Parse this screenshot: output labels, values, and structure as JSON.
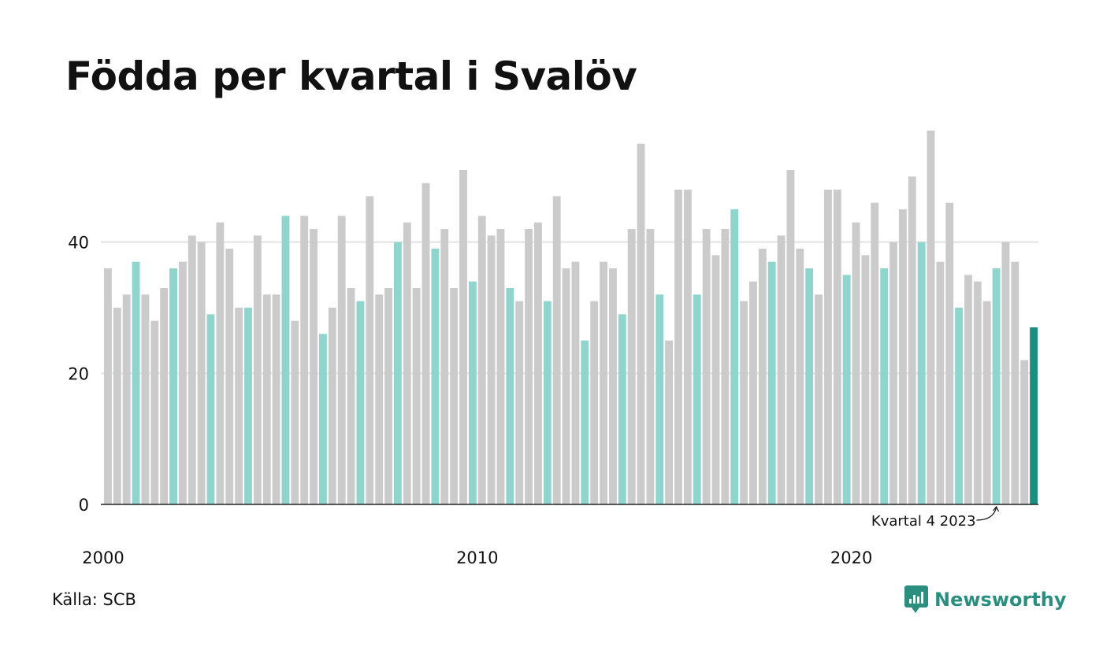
{
  "title": "Födda per kvartal i Svalöv",
  "source": "Källa: SCB",
  "brand": {
    "name": "Newsworthy",
    "icon": "newsworthy-logo-icon"
  },
  "colors": {
    "bar_default": "#cbcbcb",
    "bar_highlight": "#8fd5cd",
    "bar_latest": "#1a9080",
    "gridline": "#e2e2e2",
    "axis": "#222222",
    "brand": "#2b8f80"
  },
  "chart_data": {
    "type": "bar",
    "ylim": [
      0,
      60
    ],
    "yticks": [
      0,
      20,
      40
    ],
    "grid": true,
    "x_ticks": [
      "2000",
      "2010",
      "2020"
    ],
    "start_year": 2000,
    "highlight_quarter": 4,
    "annotation": "Kvartal 4 2023",
    "values": [
      36,
      30,
      32,
      37,
      32,
      28,
      33,
      36,
      37,
      41,
      40,
      29,
      43,
      39,
      30,
      30,
      41,
      32,
      32,
      44,
      28,
      44,
      42,
      26,
      30,
      44,
      33,
      31,
      47,
      32,
      33,
      40,
      43,
      33,
      49,
      39,
      42,
      33,
      51,
      34,
      44,
      41,
      42,
      33,
      31,
      42,
      43,
      31,
      47,
      36,
      37,
      25,
      31,
      37,
      36,
      29,
      42,
      55,
      42,
      32,
      25,
      48,
      48,
      32,
      42,
      38,
      42,
      45,
      31,
      34,
      39,
      37,
      41,
      51,
      39,
      36,
      32,
      48,
      48,
      35,
      43,
      38,
      46,
      36,
      40,
      45,
      50,
      40,
      57,
      37,
      46,
      30,
      35,
      34,
      31,
      36,
      40,
      37,
      22,
      27
    ]
  }
}
